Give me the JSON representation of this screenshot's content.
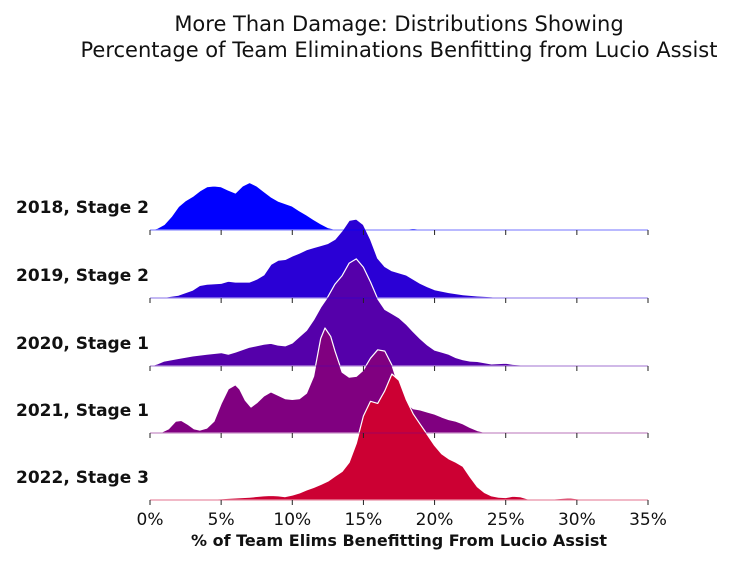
{
  "chart_data": {
    "type": "area",
    "subtype": "ridgeline",
    "title_lines": [
      "More Than Damage: Distributions Showing",
      "Percentage of Team Eliminations Benfitting from Lucio Assist"
    ],
    "xlabel": "% of Team Elims Benefitting From Lucio Assist",
    "xlim": [
      0,
      35
    ],
    "x_ticks": [
      0,
      5,
      10,
      15,
      20,
      25,
      30,
      35
    ],
    "x_tick_labels": [
      "0%",
      "5%",
      "10%",
      "15%",
      "20%",
      "25%",
      "30%",
      "35%"
    ],
    "grid": false,
    "legend": "none",
    "series": [
      {
        "name": "2018, Stage 2",
        "color": "#0000ff",
        "points": [
          [
            0,
            0
          ],
          [
            0.5,
            0.04
          ],
          [
            1,
            0.13
          ],
          [
            1.5,
            0.32
          ],
          [
            2,
            0.56
          ],
          [
            2.5,
            0.7
          ],
          [
            3,
            0.8
          ],
          [
            3.5,
            0.93
          ],
          [
            4,
            1.03
          ],
          [
            4.5,
            1.05
          ],
          [
            5,
            1.03
          ],
          [
            5.5,
            0.95
          ],
          [
            6,
            0.88
          ],
          [
            6.5,
            1.05
          ],
          [
            7,
            1.13
          ],
          [
            7.5,
            1.05
          ],
          [
            8,
            0.92
          ],
          [
            8.5,
            0.79
          ],
          [
            9,
            0.69
          ],
          [
            10,
            0.57
          ],
          [
            10.5,
            0.46
          ],
          [
            11,
            0.36
          ],
          [
            11.5,
            0.25
          ],
          [
            12,
            0.15
          ],
          [
            12.5,
            0.06
          ],
          [
            13,
            0.02
          ],
          [
            14,
            0.01
          ],
          [
            16,
            0.01
          ],
          [
            17.5,
            0.01
          ],
          [
            18,
            0.02
          ],
          [
            18.5,
            0.04
          ],
          [
            19,
            0.02
          ],
          [
            20,
            0.01
          ],
          [
            25,
            0.005
          ],
          [
            35,
            0
          ]
        ]
      },
      {
        "name": "2019, Stage 2",
        "color": "#2a00d5",
        "points": [
          [
            0,
            0
          ],
          [
            1,
            0.02
          ],
          [
            2,
            0.07
          ],
          [
            3,
            0.19
          ],
          [
            3.5,
            0.3
          ],
          [
            4,
            0.33
          ],
          [
            5,
            0.35
          ],
          [
            5.5,
            0.4
          ],
          [
            6,
            0.38
          ],
          [
            7,
            0.38
          ],
          [
            7.5,
            0.45
          ],
          [
            8,
            0.55
          ],
          [
            8.5,
            0.8
          ],
          [
            9,
            0.9
          ],
          [
            9.5,
            0.92
          ],
          [
            10,
            1.0
          ],
          [
            10.5,
            1.07
          ],
          [
            11,
            1.15
          ],
          [
            11.5,
            1.2
          ],
          [
            12,
            1.25
          ],
          [
            12.5,
            1.3
          ],
          [
            13,
            1.4
          ],
          [
            13.5,
            1.6
          ],
          [
            14,
            1.85
          ],
          [
            14.5,
            1.88
          ],
          [
            15,
            1.75
          ],
          [
            15.5,
            1.4
          ],
          [
            16,
            0.95
          ],
          [
            16.5,
            0.75
          ],
          [
            17,
            0.65
          ],
          [
            17.5,
            0.6
          ],
          [
            18,
            0.55
          ],
          [
            18.5,
            0.45
          ],
          [
            19,
            0.35
          ],
          [
            19.5,
            0.27
          ],
          [
            20,
            0.2
          ],
          [
            21,
            0.13
          ],
          [
            22,
            0.08
          ],
          [
            23,
            0.05
          ],
          [
            24,
            0.03
          ],
          [
            25,
            0
          ]
        ]
      },
      {
        "name": "2020, Stage 1",
        "color": "#5500aa",
        "points": [
          [
            0,
            0
          ],
          [
            0.5,
            0.05
          ],
          [
            1,
            0.12
          ],
          [
            2,
            0.18
          ],
          [
            3,
            0.24
          ],
          [
            4,
            0.28
          ],
          [
            5,
            0.32
          ],
          [
            5.5,
            0.28
          ],
          [
            6,
            0.33
          ],
          [
            7,
            0.45
          ],
          [
            8,
            0.52
          ],
          [
            8.5,
            0.54
          ],
          [
            9,
            0.5
          ],
          [
            9.5,
            0.48
          ],
          [
            10,
            0.55
          ],
          [
            10.5,
            0.7
          ],
          [
            11,
            0.85
          ],
          [
            11.5,
            1.1
          ],
          [
            12,
            1.4
          ],
          [
            12.5,
            1.65
          ],
          [
            13,
            1.95
          ],
          [
            13.5,
            2.15
          ],
          [
            14,
            2.45
          ],
          [
            14.5,
            2.55
          ],
          [
            15,
            2.35
          ],
          [
            15.5,
            2.0
          ],
          [
            16,
            1.6
          ],
          [
            16.5,
            1.35
          ],
          [
            17,
            1.25
          ],
          [
            17.5,
            1.15
          ],
          [
            18,
            1.0
          ],
          [
            18.5,
            0.82
          ],
          [
            19,
            0.65
          ],
          [
            19.5,
            0.5
          ],
          [
            20,
            0.38
          ],
          [
            20.5,
            0.33
          ],
          [
            21,
            0.28
          ],
          [
            21.5,
            0.2
          ],
          [
            22,
            0.15
          ],
          [
            22.5,
            0.12
          ],
          [
            23,
            0.11
          ],
          [
            24,
            0.05
          ],
          [
            25,
            0.07
          ],
          [
            25.5,
            0.04
          ],
          [
            27,
            0.01
          ],
          [
            30,
            0.005
          ],
          [
            35,
            0
          ]
        ]
      },
      {
        "name": "2021, Stage 1",
        "color": "#800080",
        "points": [
          [
            0,
            0
          ],
          [
            0.8,
            0.02
          ],
          [
            1.3,
            0.1
          ],
          [
            1.8,
            0.28
          ],
          [
            2.2,
            0.3
          ],
          [
            2.7,
            0.2
          ],
          [
            3.1,
            0.1
          ],
          [
            3.5,
            0.07
          ],
          [
            4,
            0.12
          ],
          [
            4.5,
            0.28
          ],
          [
            5,
            0.7
          ],
          [
            5.5,
            1.05
          ],
          [
            6,
            1.15
          ],
          [
            6.3,
            1.05
          ],
          [
            6.7,
            0.78
          ],
          [
            7.1,
            0.62
          ],
          [
            7.5,
            0.72
          ],
          [
            8,
            0.88
          ],
          [
            8.5,
            0.98
          ],
          [
            9,
            0.9
          ],
          [
            9.5,
            0.82
          ],
          [
            10,
            0.8
          ],
          [
            10.5,
            0.82
          ],
          [
            11,
            0.95
          ],
          [
            11.5,
            1.35
          ],
          [
            12,
            2.25
          ],
          [
            12.3,
            2.5
          ],
          [
            12.7,
            2.3
          ],
          [
            13,
            1.95
          ],
          [
            13.5,
            1.45
          ],
          [
            14,
            1.33
          ],
          [
            14.5,
            1.35
          ],
          [
            15,
            1.5
          ],
          [
            15.5,
            1.78
          ],
          [
            16,
            1.98
          ],
          [
            16.5,
            1.95
          ],
          [
            17,
            1.62
          ],
          [
            17.5,
            1.1
          ],
          [
            18,
            0.72
          ],
          [
            18.5,
            0.58
          ],
          [
            19,
            0.55
          ],
          [
            19.5,
            0.5
          ],
          [
            20,
            0.45
          ],
          [
            20.5,
            0.38
          ],
          [
            21,
            0.32
          ],
          [
            21.5,
            0.28
          ],
          [
            22,
            0.22
          ],
          [
            22.5,
            0.13
          ],
          [
            23,
            0.06
          ],
          [
            23.5,
            0.02
          ],
          [
            24,
            0.01
          ],
          [
            25,
            0.005
          ],
          [
            26,
            0
          ]
        ]
      },
      {
        "name": "2022, Stage 3",
        "color": "#cc0033",
        "points": [
          [
            0,
            0
          ],
          [
            1,
            0.005
          ],
          [
            1.5,
            0.01
          ],
          [
            2,
            0.03
          ],
          [
            2.5,
            0.02
          ],
          [
            3,
            0.01
          ],
          [
            4,
            0.02
          ],
          [
            5,
            0.03
          ],
          [
            6,
            0.05
          ],
          [
            7,
            0.07
          ],
          [
            8,
            0.1
          ],
          [
            8.5,
            0.11
          ],
          [
            9,
            0.1
          ],
          [
            9.5,
            0.08
          ],
          [
            10,
            0.12
          ],
          [
            10.5,
            0.17
          ],
          [
            11,
            0.24
          ],
          [
            11.5,
            0.3
          ],
          [
            12,
            0.37
          ],
          [
            12.5,
            0.45
          ],
          [
            13,
            0.57
          ],
          [
            13.5,
            0.68
          ],
          [
            14,
            0.9
          ],
          [
            14.5,
            1.35
          ],
          [
            15,
            2.0
          ],
          [
            15.5,
            2.35
          ],
          [
            16,
            2.3
          ],
          [
            16.5,
            2.6
          ],
          [
            17,
            3.0
          ],
          [
            17.5,
            2.85
          ],
          [
            18,
            2.4
          ],
          [
            18.5,
            2.05
          ],
          [
            19,
            1.8
          ],
          [
            19.5,
            1.55
          ],
          [
            20,
            1.3
          ],
          [
            20.5,
            1.1
          ],
          [
            21,
            0.98
          ],
          [
            21.5,
            0.9
          ],
          [
            22,
            0.8
          ],
          [
            22.5,
            0.55
          ],
          [
            23,
            0.32
          ],
          [
            23.5,
            0.18
          ],
          [
            24,
            0.1
          ],
          [
            24.5,
            0.07
          ],
          [
            25,
            0.06
          ],
          [
            25.5,
            0.09
          ],
          [
            26,
            0.08
          ],
          [
            26.5,
            0.03
          ],
          [
            27,
            0.01
          ],
          [
            28,
            0.02
          ],
          [
            29,
            0.04
          ],
          [
            29.5,
            0.05
          ],
          [
            30,
            0.03
          ],
          [
            31,
            0.01
          ],
          [
            33,
            0.005
          ],
          [
            35,
            0
          ]
        ]
      }
    ]
  }
}
